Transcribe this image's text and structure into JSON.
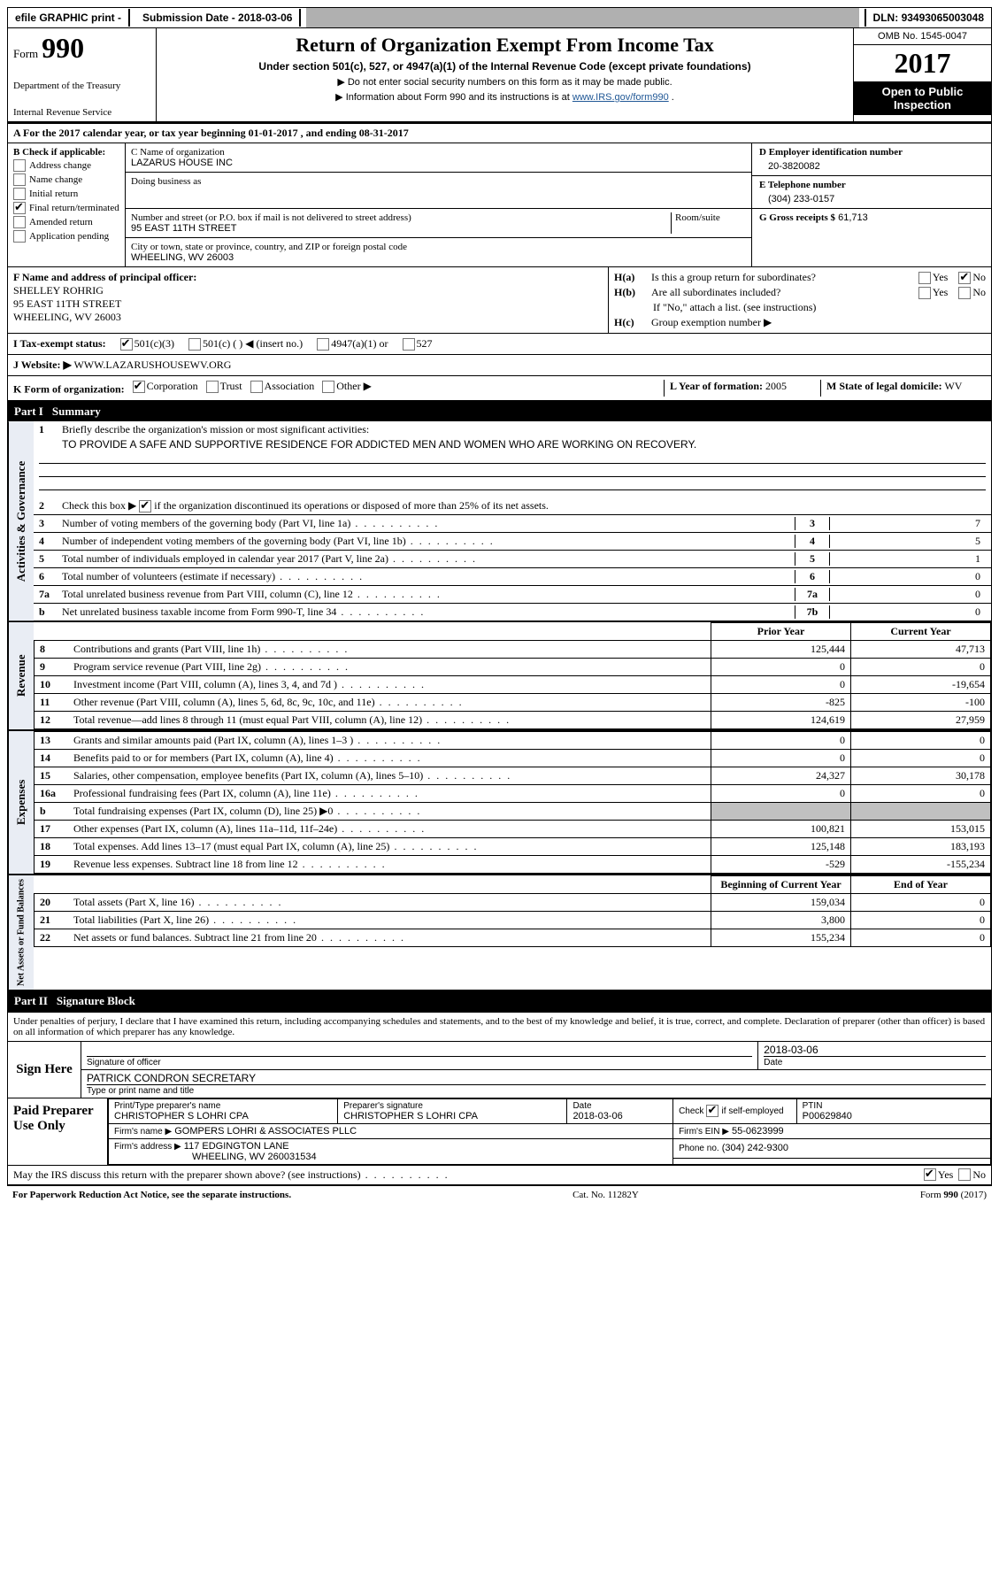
{
  "topbar": {
    "efile": "efile GRAPHIC print -",
    "subdate_label": "Submission Date -",
    "subdate_value": "2018-03-06",
    "dln_label": "DLN:",
    "dln_value": "93493065003048"
  },
  "header": {
    "form_word": "Form",
    "form_number": "990",
    "dept1": "Department of the Treasury",
    "dept2": "Internal Revenue Service",
    "title": "Return of Organization Exempt From Income Tax",
    "subtitle": "Under section 501(c), 527, or 4947(a)(1) of the Internal Revenue Code (except private foundations)",
    "arrow1": "▶ Do not enter social security numbers on this form as it may be made public.",
    "arrow2_pre": "▶ Information about Form 990 and its instructions is at ",
    "arrow2_link": "www.IRS.gov/form990",
    "arrow2_post": ".",
    "omb": "OMB No. 1545-0047",
    "year": "2017",
    "open1": "Open to Public",
    "open2": "Inspection"
  },
  "sectionA": {
    "text_pre": "A  For the 2017 calendar year, or tax year beginning ",
    "begin": "01-01-2017",
    "mid": "   , and ending ",
    "end": "08-31-2017"
  },
  "boxB": {
    "header": "B Check if applicable:",
    "items": [
      {
        "label": "Address change",
        "checked": false
      },
      {
        "label": "Name change",
        "checked": false
      },
      {
        "label": "Initial return",
        "checked": false
      },
      {
        "label": "Final return/terminated",
        "checked": true
      },
      {
        "label": "Amended return",
        "checked": false
      },
      {
        "label": "Application pending",
        "checked": false
      }
    ]
  },
  "boxC": {
    "name_label": "C Name of organization",
    "name_value": "LAZARUS HOUSE INC",
    "dba_label": "Doing business as",
    "dba_value": "",
    "street_label": "Number and street (or P.O. box if mail is not delivered to street address)",
    "room_label": "Room/suite",
    "street_value": "95 EAST 11TH STREET",
    "city_label": "City or town, state or province, country, and ZIP or foreign postal code",
    "city_value": "WHEELING, WV  26003"
  },
  "boxD": {
    "d_label": "D Employer identification number",
    "d_value": "20-3820082",
    "e_label": "E Telephone number",
    "e_value": "(304) 233-0157",
    "g_label": "G Gross receipts $",
    "g_value": "61,713"
  },
  "boxF": {
    "label": "F Name and address of principal officer:",
    "name": "SHELLEY ROHRIG",
    "street": "95 EAST 11TH STREET",
    "city": "WHEELING, WV  26003"
  },
  "boxH": {
    "ha_label": "H(a)",
    "ha_text": "Is this a group return for subordinates?",
    "ha_yes": false,
    "ha_no": true,
    "hb_label": "H(b)",
    "hb_text": "Are all subordinates included?",
    "hb_yes": false,
    "hb_no": false,
    "hb_note": "If \"No,\" attach a list. (see instructions)",
    "hc_label": "H(c)",
    "hc_text": "Group exemption number ▶"
  },
  "rowI": {
    "label": "I  Tax-exempt status:",
    "c3_checked": true,
    "c3": "501(c)(3)",
    "c_other": "501(c) (  ) ◀ (insert no.)",
    "a4947": "4947(a)(1) or",
    "s527": "527"
  },
  "rowJ": {
    "label": "J  Website: ▶",
    "value": "WWW.LAZARUSHOUSEWV.ORG"
  },
  "rowK": {
    "label": "K Form of organization:",
    "corp": "Corporation",
    "corp_checked": true,
    "trust": "Trust",
    "assoc": "Association",
    "other": "Other ▶"
  },
  "rowL": {
    "label": "L Year of formation:",
    "value": "2005"
  },
  "rowM": {
    "label": "M State of legal domicile:",
    "value": "WV"
  },
  "part1": {
    "header": "Part I",
    "title": "Summary",
    "q1_label": "1",
    "q1_text": "Briefly describe the organization's mission or most significant activities:",
    "q1_value": "TO PROVIDE A SAFE AND SUPPORTIVE RESIDENCE FOR ADDICTED MEN AND WOMEN WHO ARE WORKING ON RECOVERY.",
    "q2_label": "2",
    "q2_text": "Check this box ▶        if the organization discontinued its operations or disposed of more than 25% of its net assets.",
    "q2_checked": true,
    "governance_rows": [
      {
        "n": "3",
        "desc": "Number of voting members of the governing body (Part VI, line 1a)",
        "ref": "3",
        "val": "7"
      },
      {
        "n": "4",
        "desc": "Number of independent voting members of the governing body (Part VI, line 1b)",
        "ref": "4",
        "val": "5"
      },
      {
        "n": "5",
        "desc": "Total number of individuals employed in calendar year 2017 (Part V, line 2a)",
        "ref": "5",
        "val": "1"
      },
      {
        "n": "6",
        "desc": "Total number of volunteers (estimate if necessary)",
        "ref": "6",
        "val": "0"
      },
      {
        "n": "7a",
        "desc": "Total unrelated business revenue from Part VIII, column (C), line 12",
        "ref": "7a",
        "val": "0"
      },
      {
        "n": "b",
        "desc": "Net unrelated business taxable income from Form 990-T, line 34",
        "ref": "7b",
        "val": "0"
      }
    ],
    "col_prior": "Prior Year",
    "col_current": "Current Year",
    "revenue_rows": [
      {
        "n": "8",
        "desc": "Contributions and grants (Part VIII, line 1h)",
        "prior": "125,444",
        "curr": "47,713"
      },
      {
        "n": "9",
        "desc": "Program service revenue (Part VIII, line 2g)",
        "prior": "0",
        "curr": "0"
      },
      {
        "n": "10",
        "desc": "Investment income (Part VIII, column (A), lines 3, 4, and 7d )",
        "prior": "0",
        "curr": "-19,654"
      },
      {
        "n": "11",
        "desc": "Other revenue (Part VIII, column (A), lines 5, 6d, 8c, 9c, 10c, and 11e)",
        "prior": "-825",
        "curr": "-100"
      },
      {
        "n": "12",
        "desc": "Total revenue—add lines 8 through 11 (must equal Part VIII, column (A), line 12)",
        "prior": "124,619",
        "curr": "27,959"
      }
    ],
    "expense_rows": [
      {
        "n": "13",
        "desc": "Grants and similar amounts paid (Part IX, column (A), lines 1–3 )",
        "prior": "0",
        "curr": "0"
      },
      {
        "n": "14",
        "desc": "Benefits paid to or for members (Part IX, column (A), line 4)",
        "prior": "0",
        "curr": "0"
      },
      {
        "n": "15",
        "desc": "Salaries, other compensation, employee benefits (Part IX, column (A), lines 5–10)",
        "prior": "24,327",
        "curr": "30,178"
      },
      {
        "n": "16a",
        "desc": "Professional fundraising fees (Part IX, column (A), line 11e)",
        "prior": "0",
        "curr": "0"
      },
      {
        "n": "b",
        "desc": "Total fundraising expenses (Part IX, column (D), line 25) ▶0",
        "prior": "",
        "curr": "",
        "shade": true
      },
      {
        "n": "17",
        "desc": "Other expenses (Part IX, column (A), lines 11a–11d, 11f–24e)",
        "prior": "100,821",
        "curr": "153,015"
      },
      {
        "n": "18",
        "desc": "Total expenses. Add lines 13–17 (must equal Part IX, column (A), line 25)",
        "prior": "125,148",
        "curr": "183,193"
      },
      {
        "n": "19",
        "desc": "Revenue less expenses. Subtract line 18 from line 12",
        "prior": "-529",
        "curr": "-155,234"
      }
    ],
    "col_begin": "Beginning of Current Year",
    "col_end": "End of Year",
    "net_rows": [
      {
        "n": "20",
        "desc": "Total assets (Part X, line 16)",
        "prior": "159,034",
        "curr": "0"
      },
      {
        "n": "21",
        "desc": "Total liabilities (Part X, line 26)",
        "prior": "3,800",
        "curr": "0"
      },
      {
        "n": "22",
        "desc": "Net assets or fund balances. Subtract line 21 from line 20",
        "prior": "155,234",
        "curr": "0"
      }
    ],
    "vtab_gov": "Activities & Governance",
    "vtab_rev": "Revenue",
    "vtab_exp": "Expenses",
    "vtab_net": "Net Assets or Fund Balances"
  },
  "part2": {
    "header": "Part II",
    "title": "Signature Block",
    "perjury": "Under penalties of perjury, I declare that I have examined this return, including accompanying schedules and statements, and to the best of my knowledge and belief, it is true, correct, and complete. Declaration of preparer (other than officer) is based on all information of which preparer has any knowledge.",
    "sign_here": "Sign Here",
    "sig_officer": "Signature of officer",
    "sig_date": "Date",
    "sig_date_val": "2018-03-06",
    "officer_name": "PATRICK CONDRON SECRETARY",
    "type_name": "Type or print name and title",
    "paid": "Paid Preparer Use Only",
    "prep_name_label": "Print/Type preparer's name",
    "prep_name": "CHRISTOPHER S LOHRI CPA",
    "prep_sig_label": "Preparer's signature",
    "prep_sig": "CHRISTOPHER S LOHRI CPA",
    "prep_date_label": "Date",
    "prep_date": "2018-03-06",
    "self_emp_label": "Check",
    "self_emp_label2": "if self-employed",
    "self_emp_checked": true,
    "ptin_label": "PTIN",
    "ptin": "P00629840",
    "firm_name_label": "Firm's name      ▶",
    "firm_name": "GOMPERS LOHRI & ASSOCIATES PLLC",
    "firm_ein_label": "Firm's EIN ▶",
    "firm_ein": "55-0623999",
    "firm_addr_label": "Firm's address ▶",
    "firm_addr1": "117 EDGINGTON LANE",
    "firm_addr2": "WHEELING, WV  260031534",
    "firm_phone_label": "Phone no.",
    "firm_phone": "(304) 242-9300",
    "discuss": "May the IRS discuss this return with the preparer shown above? (see instructions)",
    "discuss_yes": true,
    "discuss_no": false
  },
  "footer": {
    "left": "For Paperwork Reduction Act Notice, see the separate instructions.",
    "mid": "Cat. No. 11282Y",
    "right": "Form 990 (2017)"
  },
  "labels": {
    "yes": "Yes",
    "no": "No"
  }
}
